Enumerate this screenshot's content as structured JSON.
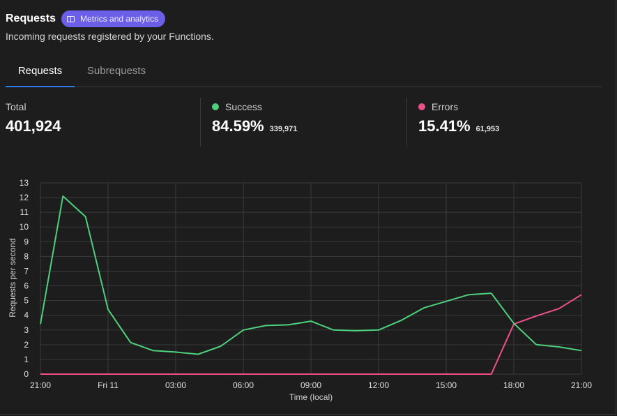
{
  "header": {
    "title": "Requests",
    "badge_label": "Metrics and analytics",
    "badge_icon": "book-icon"
  },
  "subtitle": "Incoming requests registered by your Functions.",
  "tabs": [
    {
      "label": "Requests",
      "active": true
    },
    {
      "label": "Subrequests",
      "active": false
    }
  ],
  "stats": {
    "total": {
      "label": "Total",
      "value": "401,924"
    },
    "success": {
      "label": "Success",
      "percent": "84.59%",
      "count": "339,971",
      "color": "#4ed17c"
    },
    "errors": {
      "label": "Errors",
      "percent": "15.41%",
      "count": "61,953",
      "color": "#f0508a"
    }
  },
  "chart_data": {
    "type": "line",
    "xlabel": "Time (local)",
    "ylabel": "Requests per second",
    "ylim": [
      0,
      13
    ],
    "y_ticks": [
      "0",
      "1",
      "2",
      "3",
      "4",
      "5",
      "6",
      "7",
      "8",
      "9",
      "10",
      "11",
      "12",
      "13"
    ],
    "x_tick_labels": [
      "21:00",
      "Fri 11",
      "03:00",
      "06:00",
      "09:00",
      "12:00",
      "15:00",
      "18:00",
      "21:00"
    ],
    "grid": true,
    "series": [
      {
        "name": "Success",
        "color": "#4ed17c",
        "values": [
          3.4,
          12.1,
          10.7,
          4.4,
          2.15,
          1.6,
          1.5,
          1.35,
          1.9,
          3.0,
          3.3,
          3.35,
          3.6,
          3.0,
          2.95,
          3.0,
          3.65,
          4.5,
          4.95,
          5.4,
          5.5,
          3.45,
          2.0,
          1.85,
          1.6
        ]
      },
      {
        "name": "Errors",
        "color": "#f0508a",
        "values": [
          0,
          0,
          0,
          0,
          0,
          0,
          0,
          0,
          0,
          0,
          0,
          0,
          0,
          0,
          0,
          0,
          0,
          0,
          0,
          0,
          0,
          3.4,
          3.95,
          4.45,
          5.4
        ]
      }
    ]
  }
}
